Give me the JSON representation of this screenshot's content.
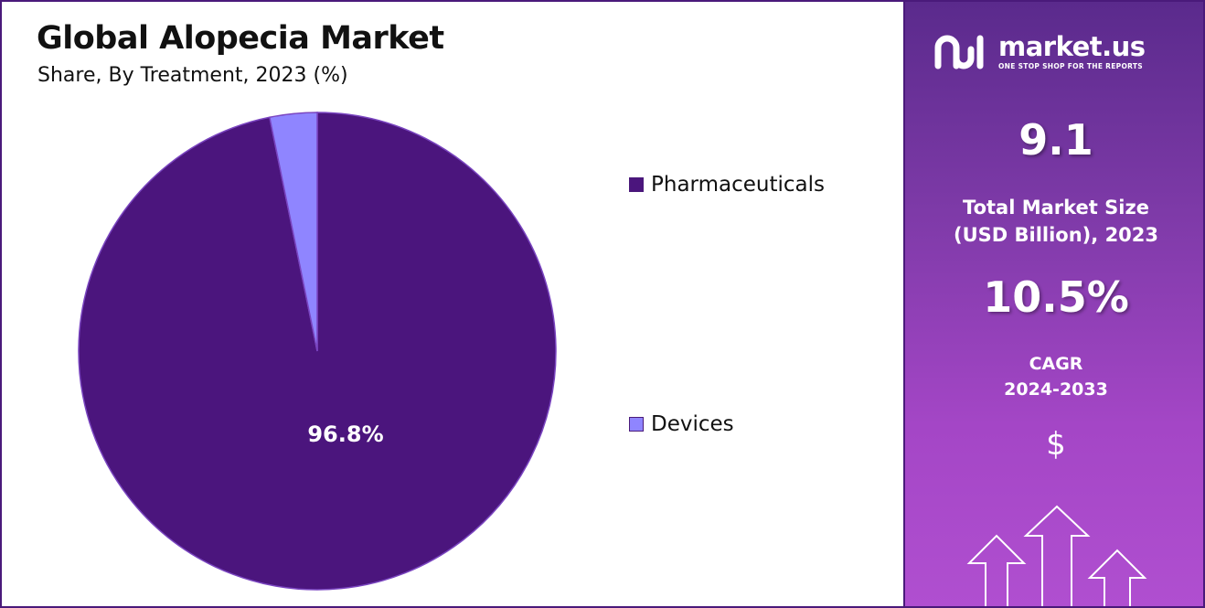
{
  "title": "Global Alopecia Market",
  "subtitle": "Share, By Treatment, 2023 (%)",
  "chart_data": {
    "type": "pie",
    "title": "Global Alopecia Market",
    "subtitle": "Share, By Treatment, 2023 (%)",
    "categories": [
      "Pharmaceuticals",
      "Devices"
    ],
    "values": [
      96.8,
      3.2
    ],
    "data_labels": [
      "96.8%",
      ""
    ],
    "colors": [
      "#4b157d",
      "#8f85ff"
    ],
    "legend_position": "right"
  },
  "legend": [
    {
      "label": "Pharmaceuticals",
      "color": "#4b157d"
    },
    {
      "label": "Devices",
      "color": "#8f85ff"
    }
  ],
  "sidebar": {
    "logo_name": "market.us",
    "logo_tagline": "ONE STOP SHOP FOR THE REPORTS",
    "market_size_value": "9.1",
    "market_size_label_1": "Total Market Size",
    "market_size_label_2": "(USD Billion), 2023",
    "cagr_value": "10.5%",
    "cagr_label_1": "CAGR",
    "cagr_label_2": "2024-2033",
    "currency_symbol": "$"
  }
}
